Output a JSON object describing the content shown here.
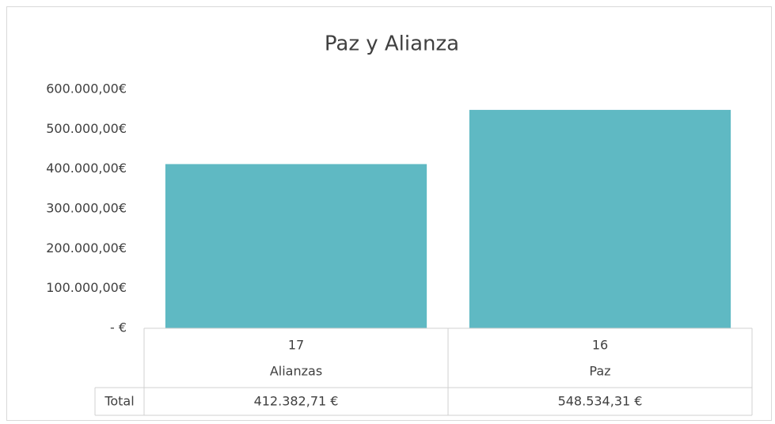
{
  "chart_data": {
    "type": "bar",
    "title": "Paz y Alianza",
    "categories": [
      "Alianzas",
      "Paz"
    ],
    "category_codes": [
      "17",
      "16"
    ],
    "series": [
      {
        "name": "Total",
        "color": "#5fb9c3",
        "values": [
          412382.71,
          548534.31
        ],
        "value_labels": [
          "412.382,71 €",
          "548.534,31 €"
        ]
      }
    ],
    "ylim": [
      0,
      600000
    ],
    "yticks": [
      {
        "value": 0,
        "label": "-   €"
      },
      {
        "value": 100000,
        "label": "100.000,00€"
      },
      {
        "value": 200000,
        "label": "200.000,00€"
      },
      {
        "value": 300000,
        "label": "300.000,00€"
      },
      {
        "value": 400000,
        "label": "400.000,00€"
      },
      {
        "value": 500000,
        "label": "500.000,00€"
      },
      {
        "value": 600000,
        "label": "600.000,00€"
      }
    ],
    "grid": false,
    "data_table": true
  }
}
